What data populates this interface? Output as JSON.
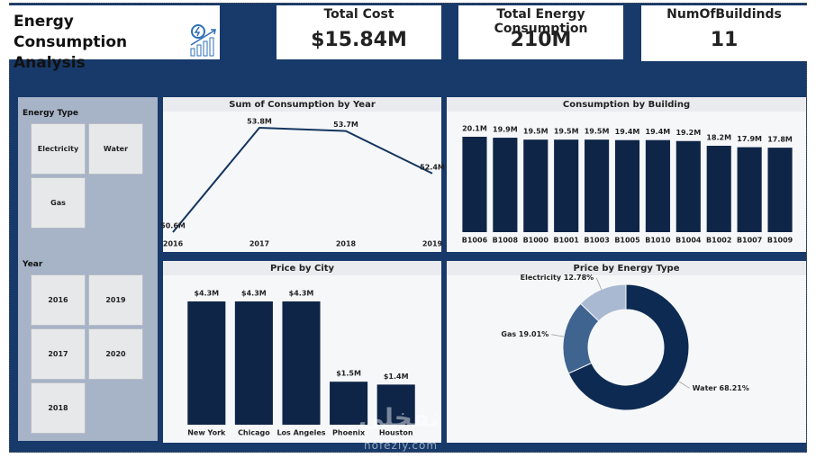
{
  "header": {
    "title": "Energy Consumption Analysis"
  },
  "kpis": [
    {
      "label": "Total Cost",
      "value": "$15.84M"
    },
    {
      "label": "Total Energy Consumption",
      "value": "210M"
    },
    {
      "label": "NumOfBuildinds",
      "value": "11"
    }
  ],
  "slicers": [
    {
      "title": "Energy Type",
      "options": [
        "Electricity",
        "Water",
        "Gas"
      ]
    },
    {
      "title": "Year",
      "options": [
        "2016",
        "2019",
        "2017",
        "2020",
        "2018"
      ]
    }
  ],
  "chart_data": [
    {
      "type": "line",
      "title": "Sum of Consumption by Year",
      "categories": [
        "2016",
        "2017",
        "2018",
        "2019"
      ],
      "values": [
        50.6,
        53.8,
        53.7,
        52.4
      ],
      "value_labels": [
        "50.6M",
        "53.8M",
        "53.7M",
        "52.4M"
      ],
      "color": "#13355f"
    },
    {
      "type": "bar",
      "title": "Consumption by Building",
      "categories": [
        "B1006",
        "B1008",
        "B1000",
        "B1001",
        "B1003",
        "B1005",
        "B1010",
        "B1004",
        "B1002",
        "B1007",
        "B1009"
      ],
      "values": [
        20.1,
        19.9,
        19.5,
        19.5,
        19.5,
        19.4,
        19.4,
        19.2,
        18.2,
        17.9,
        17.8
      ],
      "value_labels": [
        "20.1M",
        "19.9M",
        "19.5M",
        "19.5M",
        "19.5M",
        "19.4M",
        "19.4M",
        "19.2M",
        "18.2M",
        "17.9M",
        "17.8M"
      ],
      "color": "#0e2547"
    },
    {
      "type": "bar",
      "title": "Price by City",
      "categories": [
        "New York",
        "Chicago",
        "Los Angeles",
        "Phoenix",
        "Houston"
      ],
      "values": [
        4.3,
        4.3,
        4.3,
        1.5,
        1.4
      ],
      "value_labels": [
        "$4.3M",
        "$4.3M",
        "$4.3M",
        "$1.5M",
        "$1.4M"
      ],
      "color": "#0e2547"
    },
    {
      "type": "pie",
      "title": "Price by Energy Type",
      "donut": true,
      "categories": [
        "Water",
        "Gas",
        "Electricity"
      ],
      "values": [
        68.21,
        19.01,
        12.78
      ],
      "value_labels": [
        "Water 68.21%",
        "Gas 19.01%",
        "Electricity 12.78%"
      ],
      "colors": [
        "#0d2a52",
        "#3f6490",
        "#a9b9d1"
      ]
    }
  ],
  "watermark": {
    "arabic": "نفخلي",
    "latin": "nofezly.com"
  }
}
